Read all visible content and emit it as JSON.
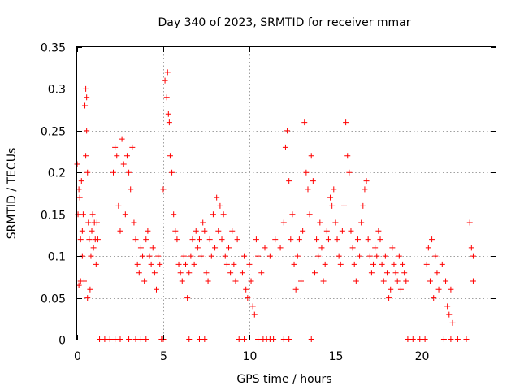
{
  "chart_data": {
    "type": "scatter",
    "title": "Day 340 of 2023, SRMTID for receiver mmar",
    "xlabel": "GPS time / hours",
    "ylabel": "SRMTID / TECUs",
    "xlim": [
      0,
      24.3
    ],
    "ylim": [
      0,
      0.35
    ],
    "xticks": [
      0,
      5,
      10,
      15,
      20
    ],
    "xtick_labels": [
      "0",
      "5",
      "10",
      "15",
      "20"
    ],
    "yticks": [
      0,
      0.05,
      0.1,
      0.15,
      0.2,
      0.25,
      0.3,
      0.35
    ],
    "ytick_labels": [
      "0",
      "0.05",
      "0.1",
      "0.15",
      "0.2",
      "0.25",
      "0.3",
      "0.35"
    ],
    "grid": true,
    "marker": "plus",
    "color": "#ff0000",
    "series": [
      {
        "name": "SRMTID",
        "x": [
          0.0,
          0.05,
          0.1,
          0.1,
          0.15,
          0.2,
          0.2,
          0.25,
          0.3,
          0.3,
          0.35,
          0.4,
          0.45,
          0.5,
          0.5,
          0.55,
          0.55,
          0.6,
          0.6,
          0.65,
          0.7,
          0.75,
          0.8,
          0.85,
          0.9,
          0.95,
          1.0,
          1.05,
          1.1,
          1.15,
          1.2,
          2.1,
          2.2,
          2.3,
          2.4,
          2.5,
          2.6,
          2.7,
          2.8,
          2.9,
          3.0,
          3.1,
          3.2,
          3.3,
          3.4,
          3.5,
          3.6,
          3.7,
          3.8,
          3.9,
          4.0,
          4.1,
          4.2,
          4.3,
          4.4,
          4.5,
          4.6,
          4.7,
          4.8,
          5.0,
          5.1,
          5.2,
          5.25,
          5.3,
          5.35,
          5.4,
          5.5,
          5.6,
          5.7,
          5.8,
          5.9,
          6.0,
          6.1,
          6.2,
          6.3,
          6.4,
          6.5,
          6.6,
          6.7,
          6.8,
          6.9,
          7.0,
          7.1,
          7.2,
          7.3,
          7.4,
          7.5,
          7.6,
          7.7,
          7.8,
          7.9,
          8.0,
          8.1,
          8.2,
          8.3,
          8.4,
          8.5,
          8.6,
          8.7,
          8.8,
          8.9,
          9.0,
          9.1,
          9.2,
          9.3,
          9.6,
          9.7,
          9.8,
          9.9,
          10.0,
          10.1,
          10.2,
          10.3,
          10.4,
          10.5,
          10.7,
          10.9,
          11.2,
          11.5,
          11.8,
          12.0,
          12.1,
          12.2,
          12.3,
          12.4,
          12.5,
          12.6,
          12.7,
          12.8,
          12.9,
          13.0,
          13.1,
          13.2,
          13.3,
          13.4,
          13.5,
          13.6,
          13.7,
          13.8,
          13.9,
          14.0,
          14.1,
          14.2,
          14.3,
          14.4,
          14.5,
          14.6,
          14.7,
          14.8,
          14.9,
          15.0,
          15.1,
          15.2,
          15.3,
          15.4,
          15.5,
          15.6,
          15.7,
          15.8,
          15.9,
          16.0,
          16.1,
          16.2,
          16.3,
          16.4,
          16.5,
          16.6,
          16.7,
          16.8,
          16.9,
          17.0,
          17.1,
          17.2,
          17.3,
          17.4,
          17.5,
          17.6,
          17.7,
          17.8,
          17.9,
          18.0,
          18.1,
          18.2,
          18.3,
          18.4,
          18.5,
          18.6,
          18.7,
          18.8,
          18.9,
          19.0,
          19.1,
          20.3,
          20.4,
          20.5,
          20.6,
          20.7,
          20.8,
          20.9,
          21.0,
          21.2,
          21.4,
          21.5,
          21.6,
          21.7,
          21.8,
          22.8,
          22.9,
          23.0,
          23.0,
          1.3,
          1.6,
          1.9,
          2.2,
          2.5,
          3.0,
          3.4,
          3.7,
          4.0,
          4.9,
          5.0,
          6.5,
          7.1,
          7.4,
          9.4,
          9.7,
          10.5,
          10.8,
          11.0,
          11.2,
          11.4,
          12.0,
          12.3,
          13.6,
          19.2,
          19.5,
          19.9,
          20.2,
          21.3,
          21.7,
          22.1,
          22.6
        ],
        "y": [
          0.21,
          0.15,
          0.065,
          0.18,
          0.17,
          0.07,
          0.12,
          0.19,
          0.1,
          0.13,
          0.15,
          0.07,
          0.28,
          0.3,
          0.22,
          0.29,
          0.25,
          0.05,
          0.2,
          0.14,
          0.12,
          0.06,
          0.1,
          0.13,
          0.15,
          0.11,
          0.14,
          0.12,
          0.09,
          0.14,
          0.12,
          0.2,
          0.23,
          0.22,
          0.16,
          0.13,
          0.24,
          0.21,
          0.15,
          0.22,
          0.2,
          0.18,
          0.23,
          0.14,
          0.12,
          0.09,
          0.08,
          0.11,
          0.1,
          0.07,
          0.12,
          0.13,
          0.1,
          0.09,
          0.11,
          0.08,
          0.06,
          0.1,
          0.09,
          0.18,
          0.31,
          0.29,
          0.32,
          0.27,
          0.26,
          0.22,
          0.2,
          0.15,
          0.13,
          0.12,
          0.09,
          0.08,
          0.07,
          0.1,
          0.09,
          0.05,
          0.08,
          0.1,
          0.12,
          0.09,
          0.13,
          0.11,
          0.12,
          0.1,
          0.14,
          0.13,
          0.08,
          0.07,
          0.12,
          0.1,
          0.15,
          0.11,
          0.17,
          0.13,
          0.16,
          0.12,
          0.15,
          0.1,
          0.09,
          0.11,
          0.08,
          0.13,
          0.09,
          0.07,
          0.12,
          0.08,
          0.1,
          0.06,
          0.05,
          0.09,
          0.07,
          0.04,
          0.03,
          0.12,
          0.1,
          0.08,
          0.11,
          0.1,
          0.12,
          0.11,
          0.14,
          0.23,
          0.25,
          0.19,
          0.12,
          0.15,
          0.09,
          0.06,
          0.1,
          0.12,
          0.07,
          0.13,
          0.26,
          0.2,
          0.18,
          0.15,
          0.22,
          0.19,
          0.08,
          0.12,
          0.1,
          0.14,
          0.11,
          0.07,
          0.09,
          0.13,
          0.12,
          0.17,
          0.16,
          0.18,
          0.14,
          0.12,
          0.1,
          0.09,
          0.13,
          0.16,
          0.26,
          0.22,
          0.2,
          0.13,
          0.11,
          0.09,
          0.07,
          0.12,
          0.1,
          0.14,
          0.16,
          0.18,
          0.19,
          0.12,
          0.1,
          0.08,
          0.09,
          0.11,
          0.1,
          0.13,
          0.12,
          0.09,
          0.07,
          0.1,
          0.08,
          0.05,
          0.06,
          0.11,
          0.09,
          0.08,
          0.07,
          0.1,
          0.06,
          0.09,
          0.08,
          0.07,
          0.09,
          0.11,
          0.07,
          0.12,
          0.05,
          0.1,
          0.08,
          0.06,
          0.09,
          0.07,
          0.04,
          0.03,
          0.06,
          0.02,
          0.14,
          0.11,
          0.07,
          0.1,
          0,
          0,
          0,
          0,
          0,
          0,
          0,
          0,
          0,
          0,
          0,
          0,
          0,
          0,
          0,
          0,
          0,
          0,
          0,
          0,
          0,
          0,
          0,
          0,
          0,
          0,
          0,
          0,
          0,
          0,
          0,
          0
        ]
      }
    ]
  }
}
